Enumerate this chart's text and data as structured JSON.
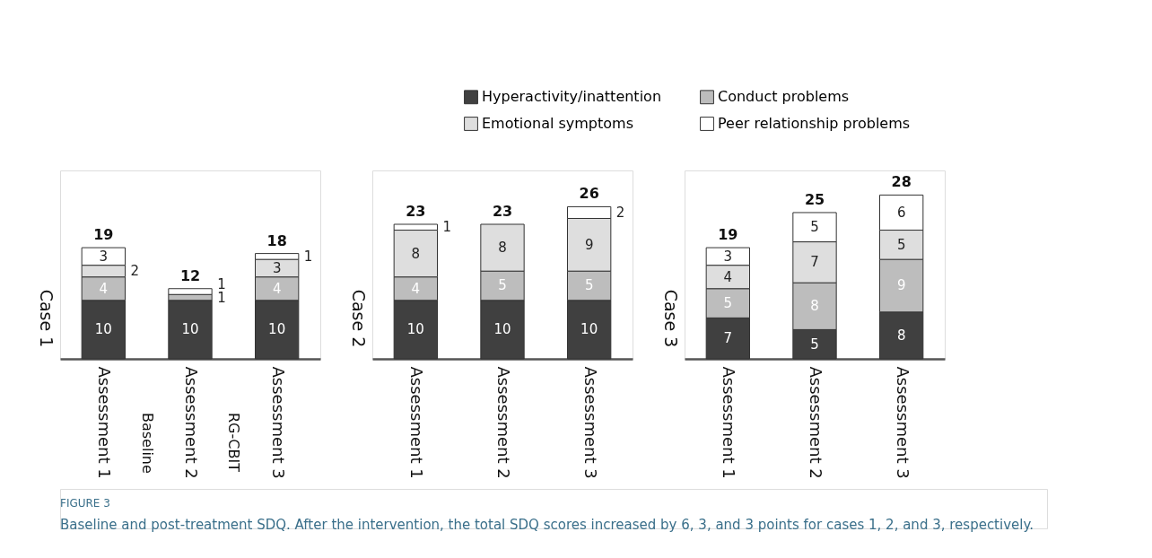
{
  "chart_data": [
    {
      "type": "bar",
      "title": "Case 1",
      "stacked": true,
      "legend": "top",
      "categories": [
        "Assessment 1",
        "Assessment 2",
        "Assessment 3"
      ],
      "series": [
        {
          "name": "Hyperactivity/inattention",
          "color": "#404040",
          "values": [
            10,
            10,
            10
          ],
          "value_labels": [
            "10",
            "10",
            "10"
          ]
        },
        {
          "name": "Conduct problems",
          "color": "#bdbdbd",
          "values": [
            4,
            1,
            4
          ],
          "value_labels": [
            "4",
            "1",
            "4"
          ]
        },
        {
          "name": "Emotional symptoms",
          "color": "#dedede",
          "values": [
            2,
            0,
            3
          ],
          "value_labels": [
            "2",
            null,
            "3"
          ]
        },
        {
          "name": "Peer relationship problems",
          "color": "#ffffff",
          "values": [
            3,
            1,
            1
          ],
          "value_labels": [
            "3",
            "1",
            "1"
          ]
        }
      ],
      "totals": [
        "19",
        "12",
        "18"
      ],
      "annotations": [
        "Baseline",
        "RG-CBIT",
        "FIGURE 3",
        "Baseline and post-treatment SDQ. After the intervention, the total SDQ scores increased by 6, 3, and 3 points for cases 1, 2, and 3, respectively."
      ]
    },
    {
      "type": "bar",
      "title": "Case 2",
      "stacked": true,
      "legend": "top",
      "categories": [
        "Assessment 1",
        "Assessment 2",
        "Assessment 3"
      ],
      "series": [
        {
          "name": "Hyperactivity/inattention",
          "color": "#404040",
          "values": [
            10,
            10,
            10
          ],
          "value_labels": [
            "10",
            "10",
            "10"
          ]
        },
        {
          "name": "Conduct problems",
          "color": "#bdbdbd",
          "values": [
            4,
            5,
            5
          ],
          "value_labels": [
            "4",
            "5",
            "5"
          ]
        },
        {
          "name": "Emotional symptoms",
          "color": "#dedede",
          "values": [
            8,
            8,
            9
          ],
          "value_labels": [
            "8",
            "8",
            "9"
          ]
        },
        {
          "name": "Peer relationship problems",
          "color": "#ffffff",
          "values": [
            1,
            0,
            2
          ],
          "value_labels": [
            "1",
            null,
            "2"
          ]
        }
      ],
      "totals": [
        "23",
        "23",
        "26"
      ]
    },
    {
      "type": "bar",
      "title": "Case 3",
      "stacked": true,
      "legend": "top",
      "categories": [
        "Assessment 1",
        "Assessment 2",
        "Assessment 3"
      ],
      "series": [
        {
          "name": "Hyperactivity/inattention",
          "color": "#404040",
          "values": [
            7,
            5,
            8
          ],
          "value_labels": [
            "7",
            "5",
            "8"
          ]
        },
        {
          "name": "Conduct problems",
          "color": "#bdbdbd",
          "values": [
            5,
            8,
            9
          ],
          "value_labels": [
            "5",
            "8",
            "9"
          ]
        },
        {
          "name": "Emotional symptoms",
          "color": "#dedede",
          "values": [
            4,
            7,
            5
          ],
          "value_labels": [
            "4",
            "7",
            "5"
          ]
        },
        {
          "name": "Peer relationship problems",
          "color": "#ffffff",
          "values": [
            3,
            5,
            6
          ],
          "value_labels": [
            "3",
            "5",
            "6"
          ]
        }
      ],
      "totals": [
        "19",
        "25",
        "28"
      ]
    }
  ]
}
